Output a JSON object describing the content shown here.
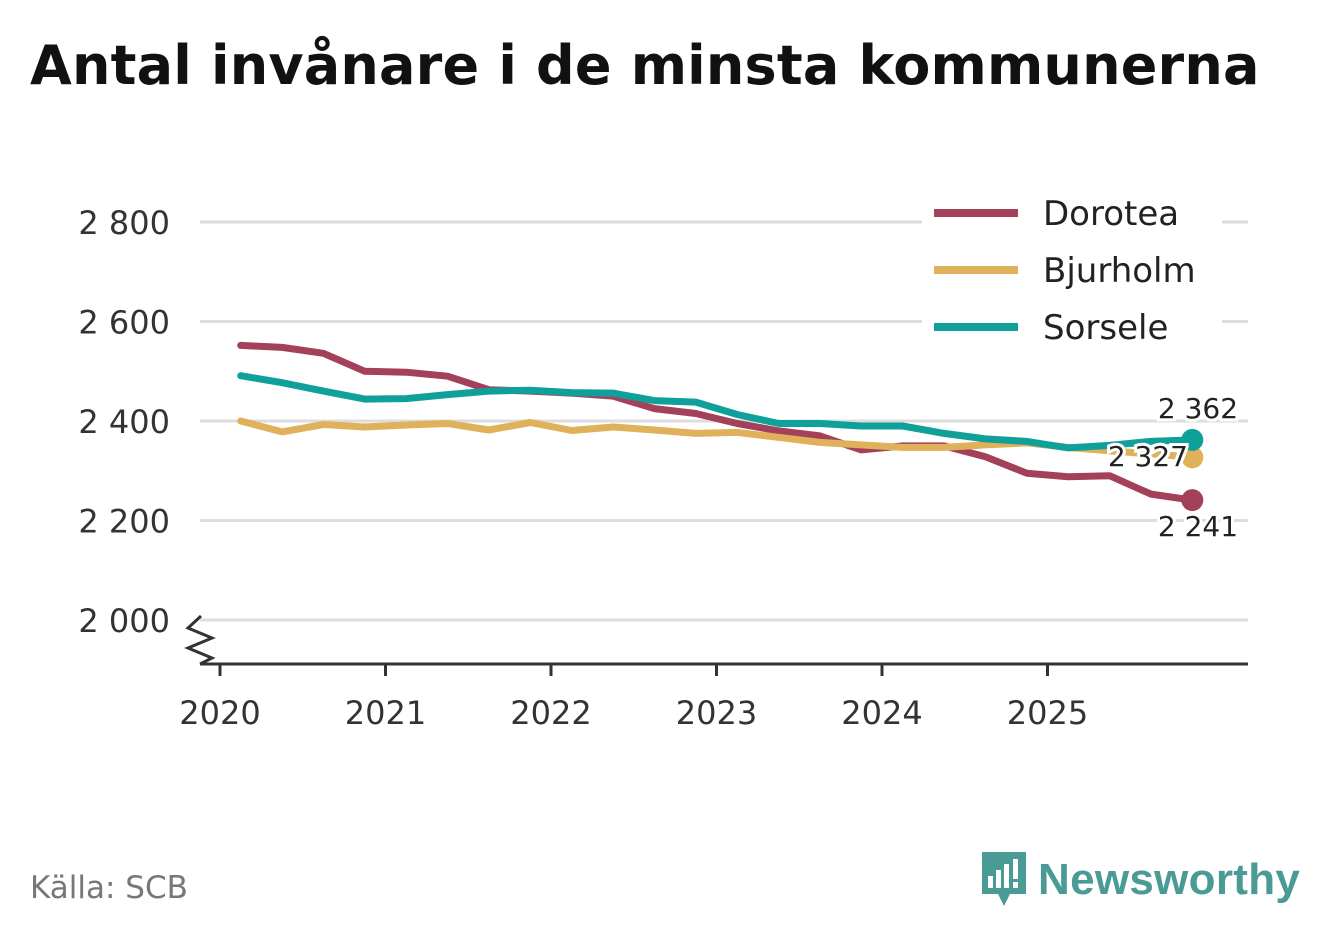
{
  "title": "Antal invånare i de minsta kommunerna",
  "source": "Källa: SCB",
  "brand": {
    "name": "Newsworthy",
    "icon": "newsworthy-logo-icon"
  },
  "colors": {
    "Dorotea": "#a3415b",
    "Bjurholm": "#e0b05a",
    "Sorsele": "#0fa09a",
    "grid": "#dddddd",
    "axis": "#333333",
    "brand": "#4a9a96"
  },
  "chart_data": {
    "type": "line",
    "title": "Antal invånare i de minsta kommunerna",
    "xlabel": "",
    "ylabel": "",
    "ylim": [
      2000,
      2900
    ],
    "xlim": [
      2019.95,
      2026.2
    ],
    "x_ticks": [
      2020,
      2021,
      2022,
      2023,
      2024,
      2025
    ],
    "x_tick_labels": [
      "2020",
      "2021",
      "2022",
      "2023",
      "2024",
      "2025"
    ],
    "y_ticks": [
      2000,
      2200,
      2400,
      2600,
      2800
    ],
    "y_tick_labels": [
      "2 000",
      "2 200",
      "2 400",
      "2 600",
      "2 800"
    ],
    "axis_break": true,
    "grid": true,
    "legend_position": "top-right",
    "x": [
      2020.125,
      2020.375,
      2020.625,
      2020.875,
      2021.125,
      2021.375,
      2021.625,
      2021.875,
      2022.125,
      2022.375,
      2022.625,
      2022.875,
      2023.125,
      2023.375,
      2023.625,
      2023.875,
      2024.125,
      2024.375,
      2024.625,
      2024.875,
      2025.125,
      2025.375,
      2025.625,
      2025.875
    ],
    "series": [
      {
        "name": "Dorotea",
        "values": [
          2552,
          2548,
          2536,
          2500,
          2498,
          2490,
          2463,
          2460,
          2456,
          2450,
          2425,
          2415,
          2395,
          2380,
          2370,
          2342,
          2350,
          2350,
          2328,
          2295,
          2288,
          2290,
          2253,
          2241
        ],
        "end_label": "2 241"
      },
      {
        "name": "Bjurholm",
        "values": [
          2400,
          2378,
          2393,
          2388,
          2392,
          2395,
          2382,
          2397,
          2381,
          2388,
          2382,
          2375,
          2377,
          2367,
          2357,
          2352,
          2347,
          2347,
          2352,
          2356,
          2347,
          2340,
          2334,
          2327
        ],
        "end_label": "2 327"
      },
      {
        "name": "Sorsele",
        "values": [
          2491,
          2477,
          2460,
          2444,
          2445,
          2453,
          2460,
          2462,
          2457,
          2456,
          2441,
          2438,
          2413,
          2395,
          2395,
          2390,
          2390,
          2375,
          2364,
          2359,
          2346,
          2351,
          2359,
          2362
        ],
        "end_label": "2 362"
      }
    ]
  }
}
